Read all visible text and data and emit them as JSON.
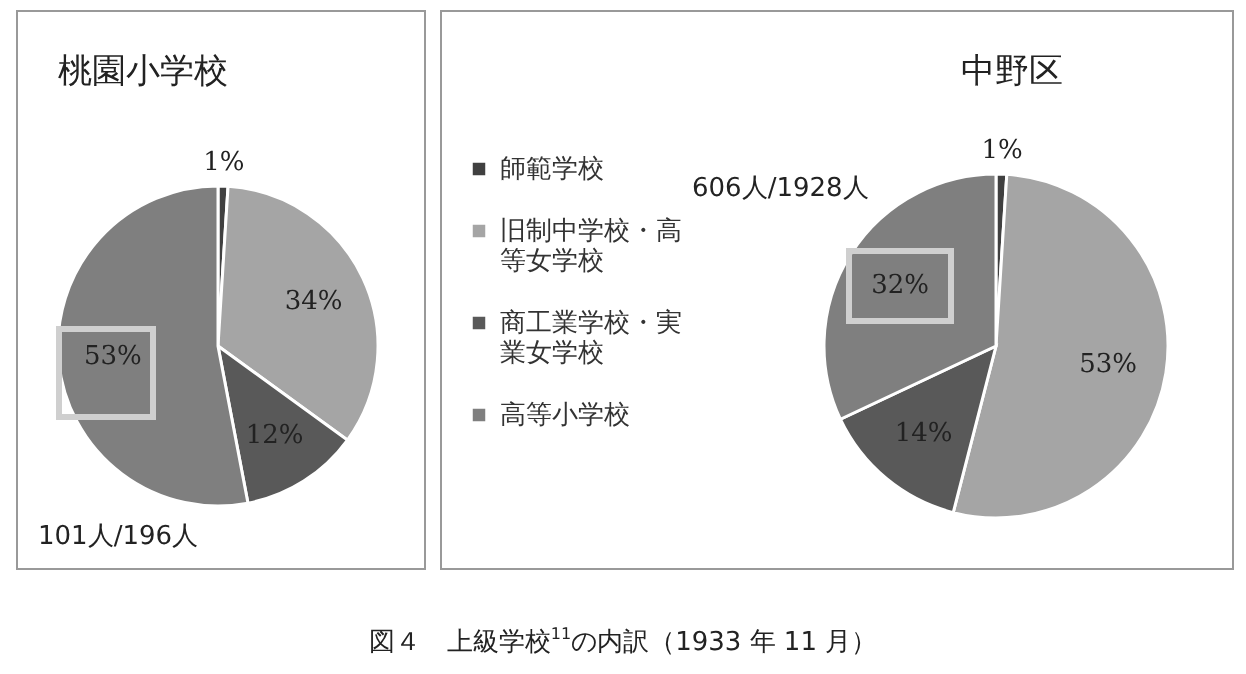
{
  "chart_data": [
    {
      "type": "pie",
      "title": "桃園小学校",
      "categories": [
        null,
        null,
        null,
        null
      ],
      "values": [
        1,
        34,
        12,
        53
      ],
      "colors": [
        "#404040",
        "#a5a5a5",
        "#595959",
        "#7f7f7f"
      ],
      "value_labels": [
        "1%",
        "34%",
        "12%",
        "53%"
      ],
      "legend": false,
      "annotations": [
        "101人/196人",
        "図４　上級学校$^{11}$の内訳（1933 年 11 月）"
      ]
    },
    {
      "type": "pie",
      "title": "中野区",
      "categories": [
        "師範学校",
        "旧制中学校・高等女学校",
        "商工業学校・実業女学校",
        "高等小学校"
      ],
      "values": [
        1,
        53,
        14,
        32
      ],
      "colors": [
        "#404040",
        "#a5a5a5",
        "#595959",
        "#7f7f7f"
      ],
      "value_labels": [
        "1%",
        "53%",
        "14%",
        "32%"
      ],
      "legend": "left",
      "annotations": [
        "606人/1928人"
      ]
    }
  ]
}
